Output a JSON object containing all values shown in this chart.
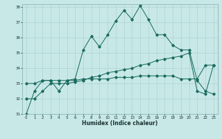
{
  "xlabel": "Humidex (Indice chaleur)",
  "x": [
    0,
    1,
    2,
    3,
    4,
    5,
    6,
    7,
    8,
    9,
    10,
    11,
    12,
    13,
    14,
    15,
    16,
    17,
    18,
    19,
    20,
    21,
    22,
    23
  ],
  "line1": [
    31.0,
    32.5,
    33.2,
    33.2,
    32.5,
    33.2,
    33.3,
    35.2,
    36.1,
    35.4,
    36.2,
    37.1,
    37.8,
    37.2,
    38.1,
    37.2,
    36.2,
    36.2,
    35.5,
    35.2,
    35.2,
    33.2,
    32.5,
    32.3
  ],
  "line2": [
    33.0,
    33.0,
    33.2,
    33.2,
    33.2,
    33.2,
    33.2,
    33.3,
    33.3,
    33.3,
    33.3,
    33.4,
    33.4,
    33.4,
    33.5,
    33.5,
    33.5,
    33.5,
    33.5,
    33.3,
    33.3,
    33.3,
    34.2,
    34.2
  ],
  "line3": [
    32.0,
    32.0,
    32.5,
    33.0,
    33.0,
    33.0,
    33.1,
    33.2,
    33.4,
    33.5,
    33.7,
    33.8,
    33.9,
    34.0,
    34.2,
    34.3,
    34.5,
    34.6,
    34.7,
    34.8,
    35.0,
    32.5,
    32.3,
    34.2
  ],
  "line_color": "#1a6b5e",
  "bg_color": "#c8e8e8",
  "grid_color": "#a8cccc",
  "ylim_min": 31,
  "ylim_max": 38,
  "xlim_min": 0,
  "xlim_max": 23
}
